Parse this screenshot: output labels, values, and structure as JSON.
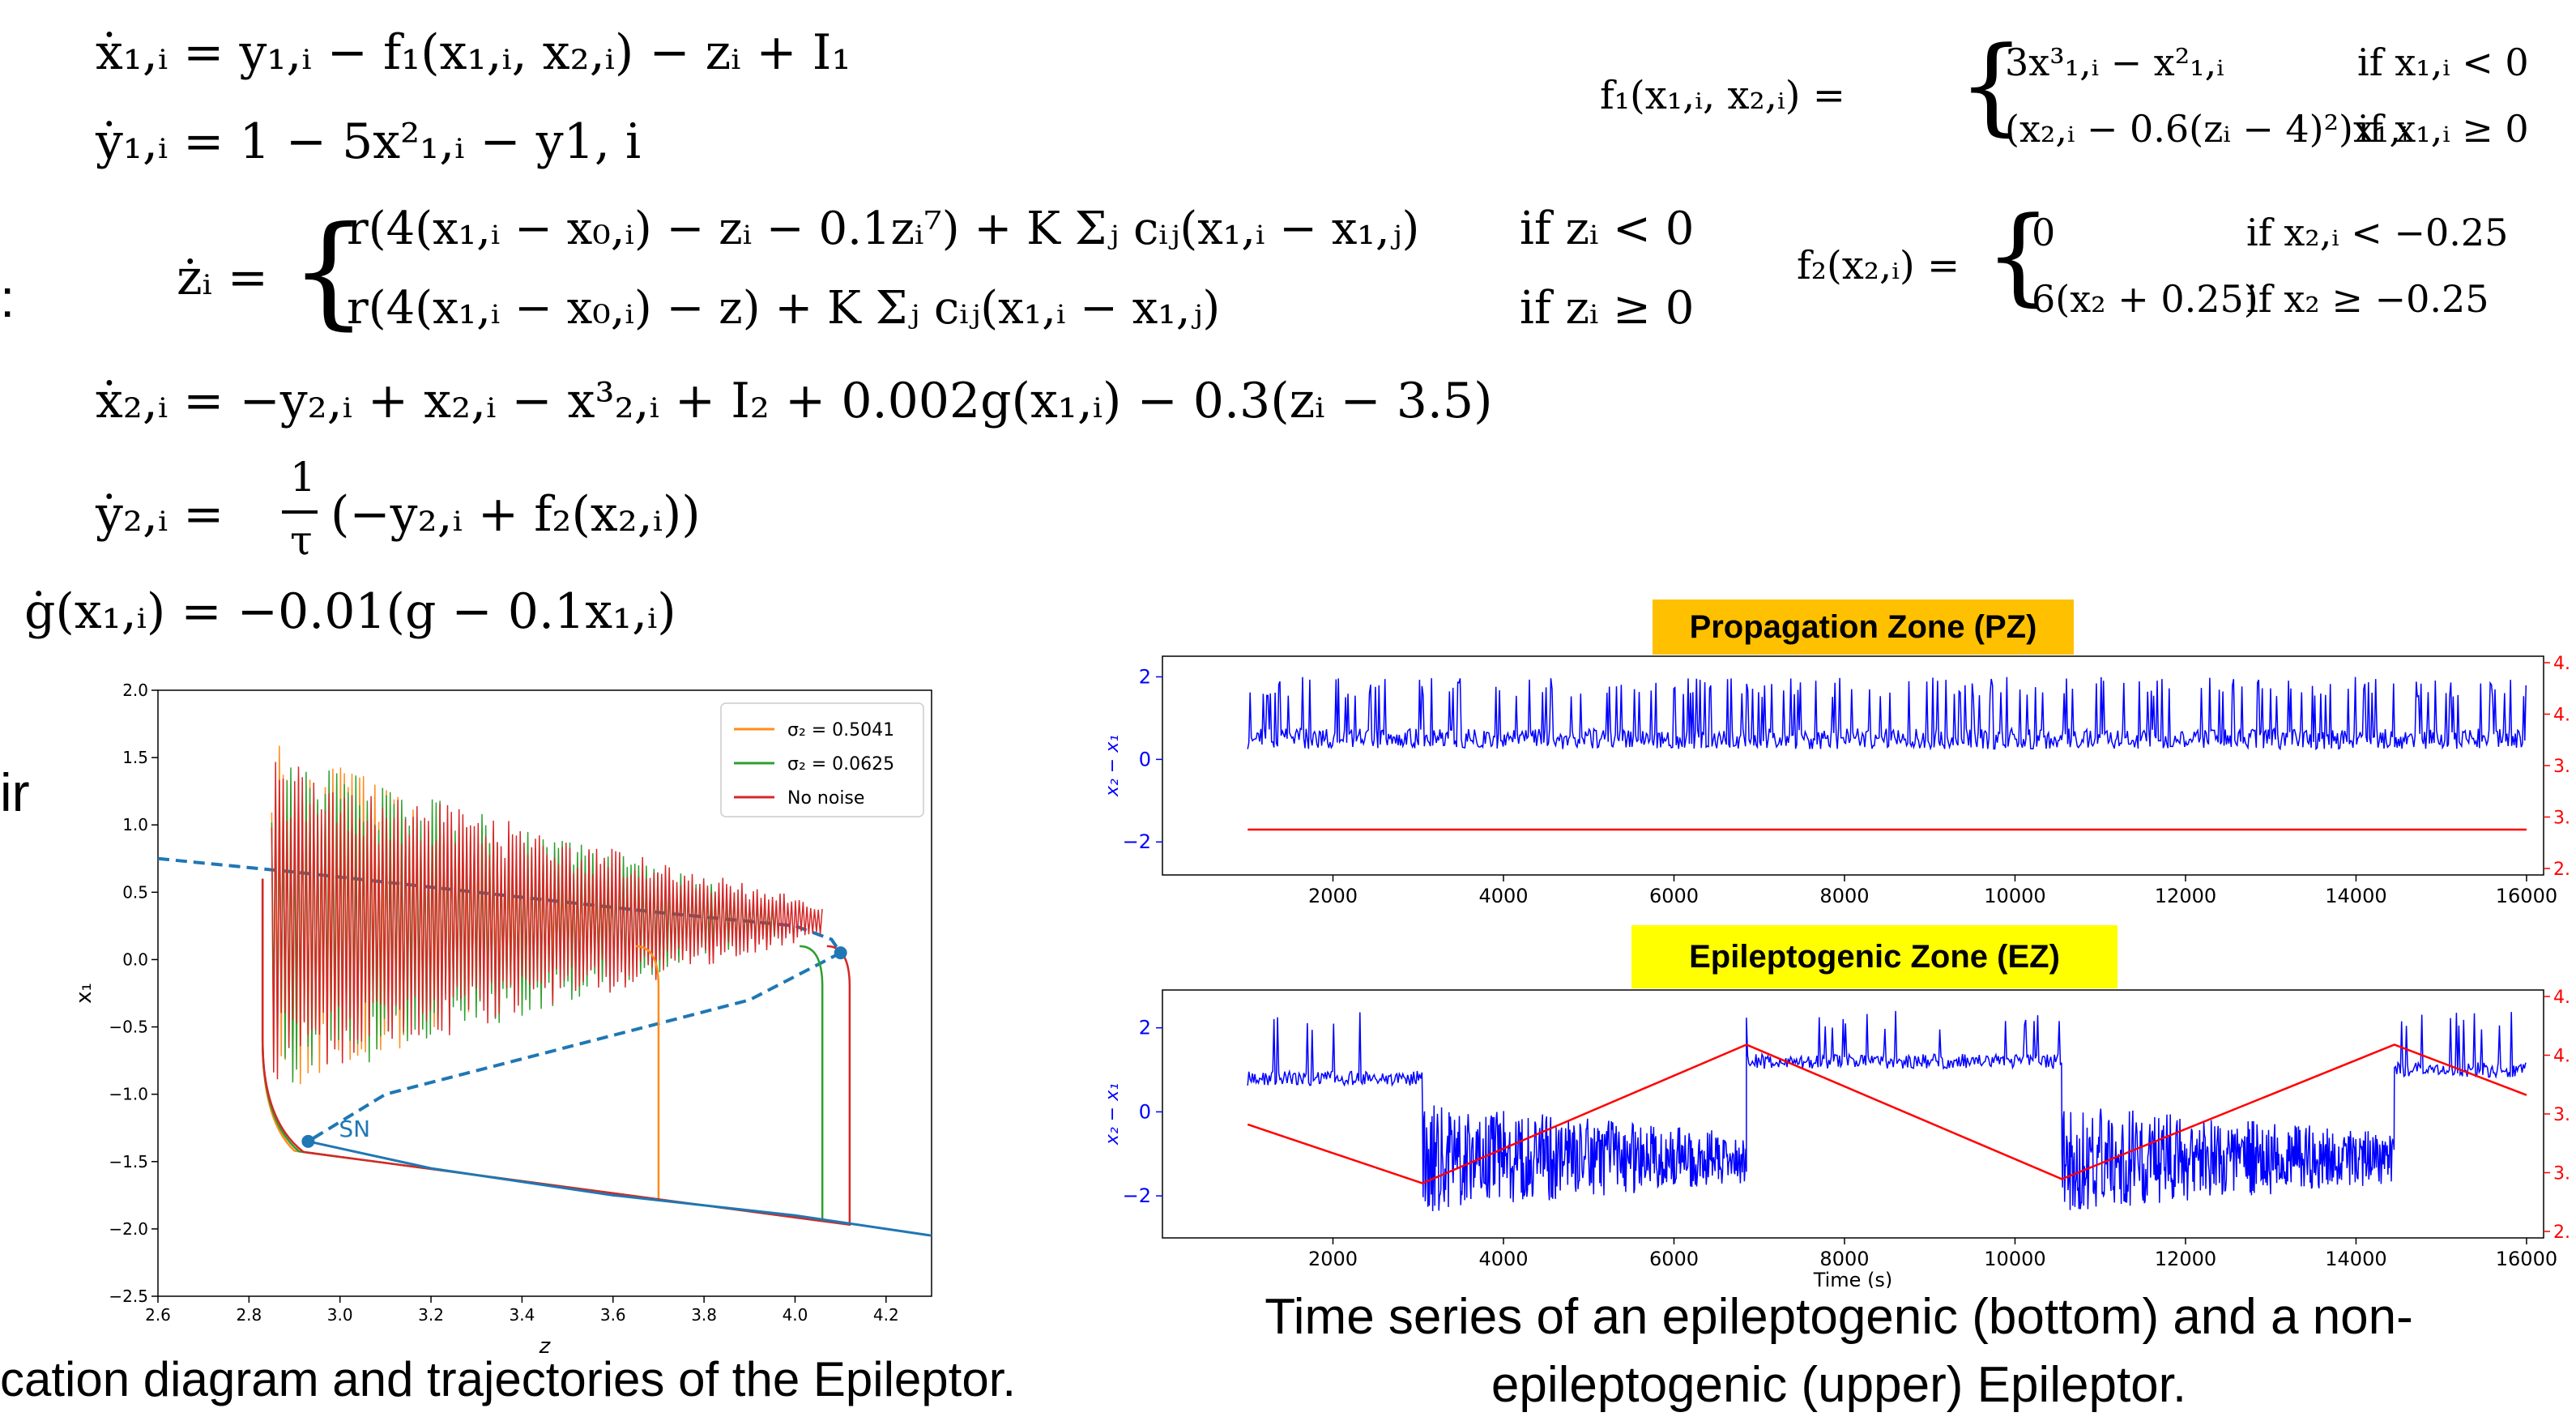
{
  "equations": {
    "x1dot": "ẋ₁,ᵢ = y₁,ᵢ − f₁(x₁,ᵢ, x₂,ᵢ) − zᵢ + I₁",
    "y1dot": "ẏ₁,ᵢ = 1 − 5x²₁,ᵢ − y1, i",
    "zdot_lhs": "żᵢ =",
    "zdot_case1": "r(4(x₁,ᵢ − x₀,ᵢ) − zᵢ − 0.1zᵢ⁷) + K Σⱼ cᵢⱼ(x₁,ᵢ − x₁,ⱼ)",
    "zdot_cond1": "if zᵢ < 0",
    "zdot_case2": "r(4(x₁,ᵢ − x₀,ᵢ) − z) + K Σⱼ cᵢⱼ(x₁,ᵢ − x₁,ⱼ)",
    "zdot_cond2": "if zᵢ ≥ 0",
    "x2dot": "ẋ₂,ᵢ = −y₂,ᵢ + x₂,ᵢ − x³₂,ᵢ + I₂ + 0.002g(x₁,ᵢ) − 0.3(zᵢ − 3.5)",
    "y2dot_lhs": "ẏ₂,ᵢ =",
    "y2dot_num": "1",
    "y2dot_den": "τ",
    "y2dot_rhs": "(−y₂,ᵢ + f₂(x₂,ᵢ))",
    "gdot": "ġ(x₁,ᵢ) = −0.01(g − 0.1x₁,ᵢ)",
    "f1_lhs": "f₁(x₁,ᵢ, x₂,ᵢ) =",
    "f1_case1": "3x³₁,ᵢ − x²₁,ᵢ",
    "f1_cond1": "if x₁,ᵢ < 0",
    "f1_case2": "(x₂,ᵢ − 0.6(zᵢ − 4)²)x₁,ᵢ",
    "f1_cond2": "if x₁,ᵢ ≥ 0",
    "f2_lhs": "f₂(x₂,ᵢ) =",
    "f2_case1": "0",
    "f2_cond1": "if x₂,ᵢ < −0.25",
    "f2_case2": "6(x₂ + 0.25)",
    "f2_cond2": "if x₂ ≥ −0.25"
  },
  "left_fragments": {
    "frag1": ":",
    "frag2": "ir"
  },
  "captions": {
    "left": "cation diagram and trajectories of the Epileptor.",
    "right_line1": "Time series of an epileptogenic (bottom) and a non-",
    "right_line2": "epileptogenic (upper) Epileptor."
  },
  "colors": {
    "blue": "#0000ff",
    "red": "#ff0000",
    "orange": "#ff8c1a",
    "green": "#2ca02c",
    "nonoise": "#d62728",
    "curve": "#1f77b4",
    "pz_bg": "#ffc000",
    "ez_bg": "#ffff00"
  },
  "chart_data": [
    {
      "type": "line",
      "xlabel": "z",
      "ylabel": "x₁",
      "xlim": [
        2.6,
        4.3
      ],
      "ylim": [
        -2.5,
        2.0
      ],
      "xticks": [
        "2.6",
        "2.8",
        "3.0",
        "3.2",
        "3.4",
        "3.6",
        "3.8",
        "4.0",
        "4.2"
      ],
      "yticks": [
        "2.0",
        "1.5",
        "1.0",
        "0.5",
        "0.0",
        "−0.5",
        "−1.0",
        "−1.5",
        "−2.0",
        "−2.5"
      ],
      "legend_position": "top-right",
      "series": [
        {
          "name": "σ₂ = 0.5041",
          "color": "orange",
          "trajectory_end_z": 3.7
        },
        {
          "name": "σ₂ = 0.0625",
          "color": "green",
          "trajectory_end_z": 4.06
        },
        {
          "name": "No noise",
          "color": "nonoise",
          "trajectory_end_z": 4.12
        }
      ],
      "nullcline": {
        "unstable_dashed": [
          [
            2.6,
            0.75
          ],
          [
            2.9,
            0.65
          ],
          [
            3.3,
            0.5
          ],
          [
            3.7,
            0.35
          ],
          [
            4.0,
            0.25
          ],
          [
            4.08,
            0.15
          ],
          [
            4.1,
            0.05
          ],
          [
            3.9,
            -0.3
          ],
          [
            3.5,
            -0.65
          ],
          [
            3.1,
            -1.0
          ],
          [
            2.93,
            -1.35
          ]
        ],
        "stable_lower": [
          [
            2.93,
            -1.35
          ],
          [
            3.2,
            -1.55
          ],
          [
            3.6,
            -1.75
          ],
          [
            4.0,
            -1.9
          ],
          [
            4.3,
            -2.05
          ]
        ]
      },
      "points": [
        {
          "label": "SN",
          "z": 2.93,
          "x1": -1.35
        },
        {
          "label": "",
          "z": 4.1,
          "x1": 0.05
        }
      ],
      "grid": false
    },
    {
      "type": "line",
      "title": "Propagation Zone (PZ)",
      "ylabel": "x₂ − x₁",
      "xlim": [
        0,
        16200
      ],
      "ylim": [
        -2.8,
        2.5
      ],
      "xticks": [
        "2000",
        "4000",
        "6000",
        "8000",
        "10000",
        "12000",
        "14000",
        "16000"
      ],
      "yticks": [
        "2",
        "0",
        "−2"
      ],
      "right_ticks": [
        "4.",
        "4.",
        "3.",
        "3.",
        "2."
      ],
      "series": [
        {
          "name": "",
          "color": "blue",
          "kind": "spiking",
          "x_range": [
            1000,
            16000
          ],
          "baseline": 0.5,
          "spike_peak": 2.0
        },
        {
          "name": "",
          "color": "red",
          "kind": "z",
          "points": [
            [
              1000,
              -1.7
            ],
            [
              16000,
              -1.7
            ]
          ]
        }
      ]
    },
    {
      "type": "line",
      "title": "Epileptogenic Zone (EZ)",
      "ylabel": "x₂ − x₁",
      "xlabel": "Time (s)",
      "xlim": [
        0,
        16200
      ],
      "ylim": [
        -3.0,
        2.9
      ],
      "xticks": [
        "2000",
        "4000",
        "6000",
        "8000",
        "10000",
        "12000",
        "14000",
        "16000"
      ],
      "yticks": [
        "2",
        "0",
        "−2"
      ],
      "right_ticks": [
        "4.",
        "4.",
        "3.",
        "3.",
        "2."
      ],
      "series": [
        {
          "name": "",
          "color": "blue",
          "kind": "seizure",
          "segments": [
            {
              "from": 1000,
              "to": 3050,
              "state": "interictal",
              "level": 0.8
            },
            {
              "from": 3050,
              "to": 6850,
              "state": "ictal",
              "level": -1.1
            },
            {
              "from": 6850,
              "to": 10550,
              "state": "interictal",
              "level": 1.2
            },
            {
              "from": 10550,
              "to": 14450,
              "state": "ictal",
              "level": -1.1
            },
            {
              "from": 14450,
              "to": 16000,
              "state": "interictal",
              "level": 1.0
            }
          ]
        },
        {
          "name": "",
          "color": "red",
          "kind": "z",
          "points": [
            [
              1000,
              -0.3
            ],
            [
              3050,
              -1.7
            ],
            [
              6850,
              1.6
            ],
            [
              10550,
              -1.6
            ],
            [
              14450,
              1.6
            ],
            [
              16000,
              0.4
            ]
          ]
        }
      ]
    }
  ]
}
